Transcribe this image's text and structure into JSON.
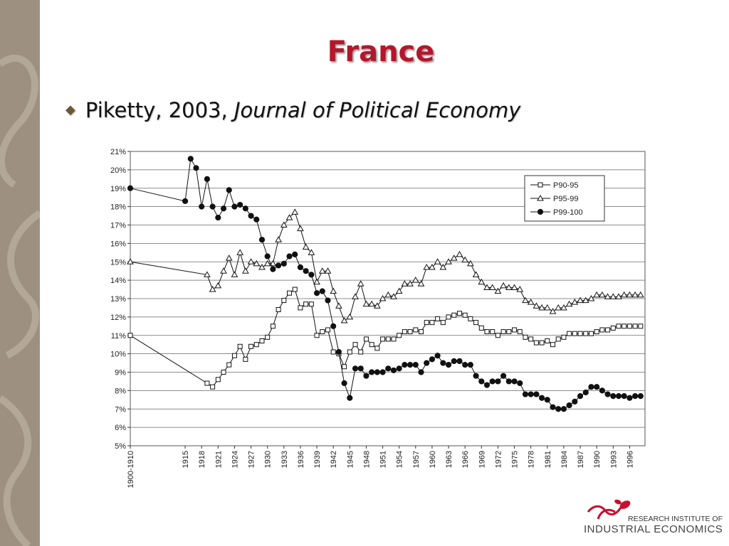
{
  "slide": {
    "title": "France",
    "bullet_author": "Piketty, 2003, ",
    "bullet_journal": "Journal of Political Economy"
  },
  "logo": {
    "line1": "RESEARCH INSTITUTE OF",
    "line2": "INDUSTRIAL ECONOMICS",
    "color_mark": "#c8102e"
  },
  "colors": {
    "side_strip": "#9d9080",
    "title": "#b5162b"
  },
  "chart_data": {
    "type": "line",
    "ylim": [
      5,
      21
    ],
    "yticks": [
      "5%",
      "6%",
      "7%",
      "8%",
      "9%",
      "10%",
      "11%",
      "12%",
      "13%",
      "14%",
      "15%",
      "16%",
      "17%",
      "18%",
      "19%",
      "20%",
      "21%"
    ],
    "xtick_labels": [
      "1900-1910",
      "1915",
      "1918",
      "1921",
      "1924",
      "1927",
      "1930",
      "1933",
      "1936",
      "1939",
      "1942",
      "1945",
      "1948",
      "1951",
      "1954",
      "1957",
      "1960",
      "1963",
      "1966",
      "1969",
      "1972",
      "1975",
      "1978",
      "1981",
      "1984",
      "1987",
      "1990",
      "1993",
      "1996"
    ],
    "xtick_years": [
      1905,
      1915,
      1918,
      1921,
      1924,
      1927,
      1930,
      1933,
      1936,
      1939,
      1942,
      1945,
      1948,
      1951,
      1954,
      1957,
      1960,
      1963,
      1966,
      1969,
      1972,
      1975,
      1978,
      1981,
      1984,
      1987,
      1990,
      1993,
      1996
    ],
    "grid": "horizontal",
    "legend_position": "top-right",
    "series": [
      {
        "name": "P90-95",
        "marker": "square",
        "x": [
          1905,
          1919,
          1920,
          1921,
          1922,
          1923,
          1924,
          1925,
          1926,
          1927,
          1928,
          1929,
          1930,
          1931,
          1932,
          1933,
          1934,
          1935,
          1936,
          1937,
          1938,
          1939,
          1940,
          1941,
          1942,
          1943,
          1944,
          1945,
          1946,
          1947,
          1948,
          1949,
          1950,
          1951,
          1952,
          1953,
          1954,
          1955,
          1956,
          1957,
          1958,
          1959,
          1960,
          1961,
          1962,
          1963,
          1964,
          1965,
          1966,
          1967,
          1968,
          1969,
          1970,
          1971,
          1972,
          1973,
          1974,
          1975,
          1976,
          1977,
          1978,
          1979,
          1980,
          1981,
          1982,
          1983,
          1984,
          1985,
          1986,
          1987,
          1988,
          1989,
          1990,
          1991,
          1992,
          1993,
          1994,
          1995,
          1996,
          1997,
          1998
        ],
        "y": [
          11.0,
          8.4,
          8.2,
          8.6,
          9.0,
          9.4,
          9.9,
          10.4,
          9.7,
          10.4,
          10.5,
          10.7,
          10.9,
          11.5,
          12.4,
          12.9,
          13.3,
          13.5,
          12.5,
          12.7,
          12.7,
          11.0,
          11.2,
          11.3,
          10.1,
          10.0,
          9.3,
          10.1,
          10.5,
          10.1,
          10.8,
          10.5,
          10.3,
          10.8,
          10.8,
          10.8,
          11.0,
          11.2,
          11.2,
          11.3,
          11.2,
          11.7,
          11.7,
          11.9,
          11.7,
          12.0,
          12.1,
          12.2,
          12.1,
          11.9,
          11.7,
          11.4,
          11.2,
          11.2,
          11.0,
          11.2,
          11.2,
          11.3,
          11.2,
          10.9,
          10.8,
          10.6,
          10.6,
          10.7,
          10.5,
          10.8,
          10.9,
          11.1,
          11.1,
          11.1,
          11.1,
          11.1,
          11.2,
          11.3,
          11.3,
          11.4,
          11.5,
          11.5,
          11.5,
          11.5,
          11.5
        ]
      },
      {
        "name": "P95-99",
        "marker": "triangle",
        "x": [
          1905,
          1919,
          1920,
          1921,
          1922,
          1923,
          1924,
          1925,
          1926,
          1927,
          1928,
          1929,
          1930,
          1931,
          1932,
          1933,
          1934,
          1935,
          1936,
          1937,
          1938,
          1939,
          1940,
          1941,
          1942,
          1943,
          1944,
          1945,
          1946,
          1947,
          1948,
          1949,
          1950,
          1951,
          1952,
          1953,
          1954,
          1955,
          1956,
          1957,
          1958,
          1959,
          1960,
          1961,
          1962,
          1963,
          1964,
          1965,
          1966,
          1967,
          1968,
          1969,
          1970,
          1971,
          1972,
          1973,
          1974,
          1975,
          1976,
          1977,
          1978,
          1979,
          1980,
          1981,
          1982,
          1983,
          1984,
          1985,
          1986,
          1987,
          1988,
          1989,
          1990,
          1991,
          1992,
          1993,
          1994,
          1995,
          1996,
          1997,
          1998
        ],
        "y": [
          15.0,
          14.3,
          13.5,
          13.7,
          14.5,
          15.2,
          14.3,
          15.5,
          14.5,
          15.0,
          14.9,
          14.7,
          14.9,
          14.9,
          16.2,
          17.0,
          17.4,
          17.7,
          16.8,
          15.8,
          15.5,
          13.9,
          14.5,
          14.5,
          13.4,
          12.6,
          11.8,
          12.0,
          13.1,
          13.8,
          12.7,
          12.7,
          12.6,
          13.0,
          13.2,
          13.1,
          13.4,
          13.8,
          13.8,
          14.0,
          13.8,
          14.7,
          14.7,
          15.0,
          14.7,
          15.0,
          15.2,
          15.4,
          15.1,
          14.9,
          14.3,
          13.9,
          13.6,
          13.6,
          13.4,
          13.7,
          13.6,
          13.6,
          13.5,
          12.9,
          12.8,
          12.6,
          12.5,
          12.5,
          12.3,
          12.5,
          12.5,
          12.7,
          12.8,
          12.9,
          12.9,
          13.0,
          13.2,
          13.2,
          13.1,
          13.1,
          13.1,
          13.2,
          13.2,
          13.2,
          13.2
        ]
      },
      {
        "name": "P99-100",
        "marker": "circle",
        "x": [
          1905,
          1915,
          1916,
          1917,
          1918,
          1919,
          1920,
          1921,
          1922,
          1923,
          1924,
          1925,
          1926,
          1927,
          1928,
          1929,
          1930,
          1931,
          1932,
          1933,
          1934,
          1935,
          1936,
          1937,
          1938,
          1939,
          1940,
          1941,
          1942,
          1943,
          1944,
          1945,
          1946,
          1947,
          1948,
          1949,
          1950,
          1951,
          1952,
          1953,
          1954,
          1955,
          1956,
          1957,
          1958,
          1959,
          1960,
          1961,
          1962,
          1963,
          1964,
          1965,
          1966,
          1967,
          1968,
          1969,
          1970,
          1971,
          1972,
          1973,
          1974,
          1975,
          1976,
          1977,
          1978,
          1979,
          1980,
          1981,
          1982,
          1983,
          1984,
          1985,
          1986,
          1987,
          1988,
          1989,
          1990,
          1991,
          1992,
          1993,
          1994,
          1995,
          1996,
          1997,
          1998
        ],
        "y": [
          19.0,
          18.3,
          20.6,
          20.1,
          18.0,
          19.5,
          18.0,
          17.4,
          17.9,
          18.9,
          18.0,
          18.1,
          17.9,
          17.5,
          17.3,
          16.2,
          15.3,
          14.6,
          14.8,
          14.9,
          15.3,
          15.4,
          14.7,
          14.5,
          14.3,
          13.3,
          13.4,
          12.9,
          11.5,
          10.1,
          8.4,
          7.6,
          9.2,
          9.2,
          8.8,
          9.0,
          9.0,
          9.0,
          9.2,
          9.1,
          9.2,
          9.4,
          9.4,
          9.4,
          9.0,
          9.5,
          9.7,
          9.9,
          9.5,
          9.4,
          9.6,
          9.6,
          9.4,
          9.4,
          8.8,
          8.5,
          8.3,
          8.5,
          8.5,
          8.8,
          8.5,
          8.5,
          8.4,
          7.8,
          7.8,
          7.8,
          7.6,
          7.5,
          7.1,
          7.0,
          7.0,
          7.2,
          7.4,
          7.7,
          7.9,
          8.2,
          8.2,
          8.0,
          7.8,
          7.7,
          7.7,
          7.7,
          7.6,
          7.7,
          7.7
        ]
      }
    ]
  }
}
